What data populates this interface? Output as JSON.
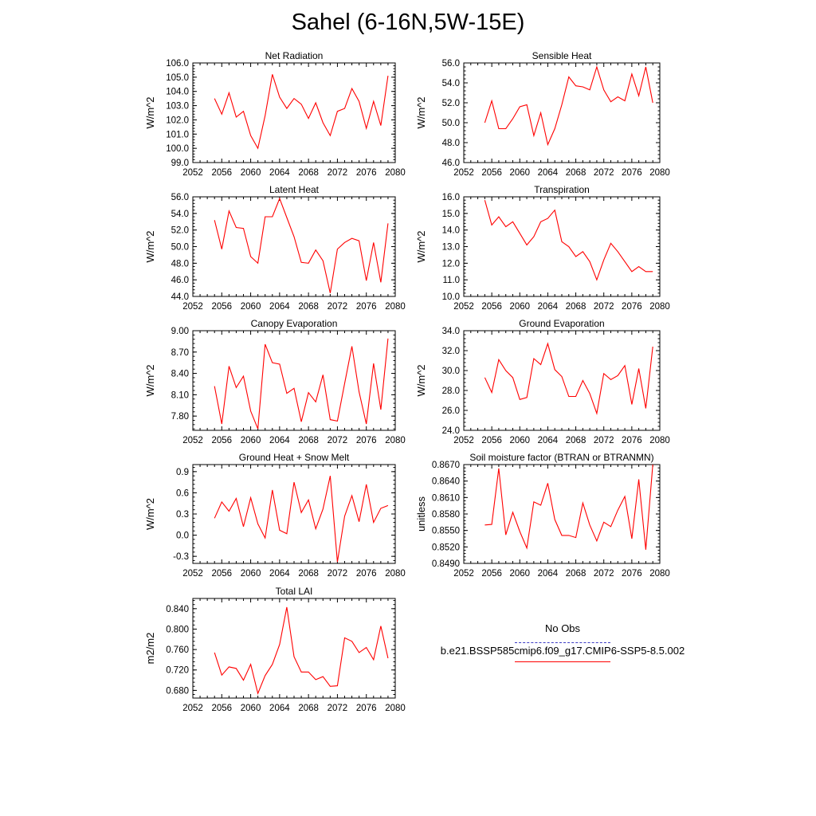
{
  "title": "Sahel (6-16N,5W-15E)",
  "legend": {
    "entries": [
      {
        "label": "No Obs",
        "color": "#3b3bc4",
        "dash": "dashed"
      },
      {
        "label": "b.e21.BSSP585cmip6.f09_g17.CMIP6-SSP5-8.5.002",
        "color": "#ff0000",
        "dash": "solid"
      }
    ]
  },
  "chart_data": [
    {
      "type": "line",
      "title": "Net Radiation",
      "ylabel": "W/m^2",
      "xlim": [
        2052,
        2080
      ],
      "xticks": [
        "2052",
        "2056",
        "2060",
        "2064",
        "2068",
        "2072",
        "2076",
        "2080"
      ],
      "ylim": [
        99.0,
        106.0
      ],
      "yticks": [
        "99.0",
        "100.0",
        "101.0",
        "102.0",
        "103.0",
        "104.0",
        "105.0",
        "106.0"
      ],
      "x": [
        2055,
        2056,
        2057,
        2058,
        2059,
        2060,
        2061,
        2062,
        2063,
        2064,
        2065,
        2066,
        2067,
        2068,
        2069,
        2070,
        2071,
        2072,
        2073,
        2074,
        2075,
        2076,
        2077,
        2078,
        2079
      ],
      "series": [
        {
          "color": "#ff0000",
          "values": [
            103.5,
            102.4,
            103.9,
            102.2,
            102.6,
            100.9,
            100.0,
            102.3,
            105.2,
            103.6,
            102.8,
            103.5,
            103.1,
            102.1,
            103.2,
            101.8,
            100.9,
            102.6,
            102.8,
            104.2,
            103.3,
            101.4,
            103.3,
            101.6,
            105.1
          ]
        }
      ]
    },
    {
      "type": "line",
      "title": "Sensible Heat",
      "ylabel": "W/m^2",
      "xlim": [
        2052,
        2080
      ],
      "xticks": [
        "2052",
        "2056",
        "2060",
        "2064",
        "2068",
        "2072",
        "2076",
        "2080"
      ],
      "ylim": [
        46.0,
        56.0
      ],
      "yticks": [
        "46.0",
        "48.0",
        "50.0",
        "52.0",
        "54.0",
        "56.0"
      ],
      "x": [
        2055,
        2056,
        2057,
        2058,
        2059,
        2060,
        2061,
        2062,
        2063,
        2064,
        2065,
        2066,
        2067,
        2068,
        2069,
        2070,
        2071,
        2072,
        2073,
        2074,
        2075,
        2076,
        2077,
        2078,
        2079
      ],
      "series": [
        {
          "color": "#ff0000",
          "values": [
            50.0,
            52.2,
            49.4,
            49.4,
            50.4,
            51.6,
            51.8,
            48.7,
            51.0,
            47.8,
            49.4,
            51.8,
            54.6,
            53.7,
            53.6,
            53.3,
            55.6,
            53.3,
            52.1,
            52.6,
            52.2,
            54.9,
            52.7,
            55.6,
            52.0
          ]
        }
      ]
    },
    {
      "type": "line",
      "title": "Latent Heat",
      "ylabel": "W/m^2",
      "xlim": [
        2052,
        2080
      ],
      "xticks": [
        "2052",
        "2056",
        "2060",
        "2064",
        "2068",
        "2072",
        "2076",
        "2080"
      ],
      "ylim": [
        44.0,
        56.0
      ],
      "yticks": [
        "44.0",
        "46.0",
        "48.0",
        "50.0",
        "52.0",
        "54.0",
        "56.0"
      ],
      "x": [
        2055,
        2056,
        2057,
        2058,
        2059,
        2060,
        2061,
        2062,
        2063,
        2064,
        2065,
        2066,
        2067,
        2068,
        2069,
        2070,
        2071,
        2072,
        2073,
        2074,
        2075,
        2076,
        2077,
        2078,
        2079
      ],
      "series": [
        {
          "color": "#ff0000",
          "values": [
            53.2,
            49.7,
            54.3,
            52.3,
            52.2,
            48.8,
            48.0,
            53.6,
            53.6,
            55.8,
            53.5,
            51.2,
            48.1,
            48.0,
            49.6,
            48.3,
            44.4,
            49.7,
            50.5,
            51.0,
            50.7,
            45.9,
            50.5,
            45.7,
            52.8
          ]
        }
      ]
    },
    {
      "type": "line",
      "title": "Transpiration",
      "ylabel": "W/m^2",
      "xlim": [
        2052,
        2080
      ],
      "xticks": [
        "2052",
        "2056",
        "2060",
        "2064",
        "2068",
        "2072",
        "2076",
        "2080"
      ],
      "ylim": [
        10.0,
        16.0
      ],
      "yticks": [
        "10.0",
        "11.0",
        "12.0",
        "13.0",
        "14.0",
        "15.0",
        "16.0"
      ],
      "x": [
        2055,
        2056,
        2057,
        2058,
        2059,
        2060,
        2061,
        2062,
        2063,
        2064,
        2065,
        2066,
        2067,
        2068,
        2069,
        2070,
        2071,
        2072,
        2073,
        2074,
        2075,
        2076,
        2077,
        2078,
        2079
      ],
      "series": [
        {
          "color": "#ff0000",
          "values": [
            15.8,
            14.3,
            14.8,
            14.2,
            14.5,
            13.8,
            13.1,
            13.6,
            14.5,
            14.7,
            15.2,
            13.3,
            13.0,
            12.4,
            12.7,
            12.1,
            11.0,
            12.2,
            13.2,
            12.7,
            12.1,
            11.5,
            11.8,
            11.5,
            11.5
          ]
        }
      ]
    },
    {
      "type": "line",
      "title": "Canopy Evaporation",
      "ylabel": "W/m^2",
      "xlim": [
        2052,
        2080
      ],
      "xticks": [
        "2052",
        "2056",
        "2060",
        "2064",
        "2068",
        "2072",
        "2076",
        "2080"
      ],
      "ylim": [
        7.6,
        9.0
      ],
      "yticks": [
        "7.80",
        "8.10",
        "8.40",
        "8.70",
        "9.00"
      ],
      "ytick_values": [
        7.8,
        8.1,
        8.4,
        8.7,
        9.0
      ],
      "x": [
        2055,
        2056,
        2057,
        2058,
        2059,
        2060,
        2061,
        2062,
        2063,
        2064,
        2065,
        2066,
        2067,
        2068,
        2069,
        2070,
        2071,
        2072,
        2073,
        2074,
        2075,
        2076,
        2077,
        2078,
        2079
      ],
      "series": [
        {
          "color": "#ff0000",
          "values": [
            8.22,
            7.69,
            8.5,
            8.2,
            8.36,
            7.87,
            7.62,
            8.81,
            8.55,
            8.53,
            8.12,
            8.19,
            7.72,
            8.13,
            8.0,
            8.38,
            7.75,
            7.73,
            8.26,
            8.78,
            8.14,
            7.69,
            8.54,
            7.89,
            8.89
          ]
        }
      ]
    },
    {
      "type": "line",
      "title": "Ground Evaporation",
      "ylabel": "W/m^2",
      "xlim": [
        2052,
        2080
      ],
      "xticks": [
        "2052",
        "2056",
        "2060",
        "2064",
        "2068",
        "2072",
        "2076",
        "2080"
      ],
      "ylim": [
        24.0,
        34.0
      ],
      "yticks": [
        "24.0",
        "26.0",
        "28.0",
        "30.0",
        "32.0",
        "34.0"
      ],
      "x": [
        2055,
        2056,
        2057,
        2058,
        2059,
        2060,
        2061,
        2062,
        2063,
        2064,
        2065,
        2066,
        2067,
        2068,
        2069,
        2070,
        2071,
        2072,
        2073,
        2074,
        2075,
        2076,
        2077,
        2078,
        2079
      ],
      "series": [
        {
          "color": "#ff0000",
          "values": [
            29.3,
            27.8,
            31.1,
            30.0,
            29.3,
            27.1,
            27.3,
            31.2,
            30.6,
            32.7,
            30.1,
            29.4,
            27.4,
            27.4,
            29.0,
            27.7,
            25.7,
            29.7,
            29.1,
            29.5,
            30.5,
            26.6,
            30.2,
            26.2,
            32.4
          ]
        }
      ]
    },
    {
      "type": "line",
      "title": "Ground Heat + Snow Melt",
      "ylabel": "W/m^2",
      "xlim": [
        2052,
        2080
      ],
      "xticks": [
        "2052",
        "2056",
        "2060",
        "2064",
        "2068",
        "2072",
        "2076",
        "2080"
      ],
      "ylim": [
        -0.4,
        1.0
      ],
      "yticks": [
        "-0.3",
        "0.0",
        "0.3",
        "0.6",
        "0.9"
      ],
      "ytick_values": [
        -0.3,
        0.0,
        0.3,
        0.6,
        0.9
      ],
      "x": [
        2055,
        2056,
        2057,
        2058,
        2059,
        2060,
        2061,
        2062,
        2063,
        2064,
        2065,
        2066,
        2067,
        2068,
        2069,
        2070,
        2071,
        2072,
        2073,
        2074,
        2075,
        2076,
        2077,
        2078,
        2079
      ],
      "series": [
        {
          "color": "#ff0000",
          "values": [
            0.24,
            0.47,
            0.34,
            0.52,
            0.12,
            0.53,
            0.16,
            -0.04,
            0.64,
            0.07,
            0.02,
            0.75,
            0.32,
            0.5,
            0.09,
            0.37,
            0.84,
            -0.38,
            0.27,
            0.56,
            0.19,
            0.72,
            0.18,
            0.38,
            0.42
          ]
        }
      ]
    },
    {
      "type": "line",
      "title": "Soil moisture factor (BTRAN or BTRANMN)",
      "ylabel": "unitless",
      "xlim": [
        2052,
        2080
      ],
      "xticks": [
        "2052",
        "2056",
        "2060",
        "2064",
        "2068",
        "2072",
        "2076",
        "2080"
      ],
      "ylim": [
        0.849,
        0.867
      ],
      "yticks": [
        "0.8490",
        "0.8520",
        "0.8550",
        "0.8580",
        "0.8610",
        "0.8640",
        "0.8670"
      ],
      "ytick_values": [
        0.849,
        0.852,
        0.855,
        0.858,
        0.861,
        0.864,
        0.867
      ],
      "x": [
        2055,
        2056,
        2057,
        2058,
        2059,
        2060,
        2061,
        2062,
        2063,
        2064,
        2065,
        2066,
        2067,
        2068,
        2069,
        2070,
        2071,
        2072,
        2073,
        2074,
        2075,
        2076,
        2077,
        2078,
        2079
      ],
      "series": [
        {
          "color": "#ff0000",
          "values": [
            0.856,
            0.8561,
            0.8663,
            0.8542,
            0.8583,
            0.8548,
            0.8518,
            0.8602,
            0.8596,
            0.8636,
            0.857,
            0.8541,
            0.8541,
            0.8537,
            0.86,
            0.856,
            0.8531,
            0.8565,
            0.8557,
            0.8587,
            0.8612,
            0.8535,
            0.8643,
            0.8515,
            0.867
          ]
        }
      ]
    },
    {
      "type": "line",
      "title": "Total LAI",
      "ylabel": "m2/m2",
      "xlim": [
        2052,
        2080
      ],
      "xticks": [
        "2052",
        "2056",
        "2060",
        "2064",
        "2068",
        "2072",
        "2076",
        "2080"
      ],
      "ylim": [
        0.665,
        0.86
      ],
      "yticks": [
        "0.680",
        "0.720",
        "0.760",
        "0.800",
        "0.840"
      ],
      "ytick_values": [
        0.68,
        0.72,
        0.76,
        0.8,
        0.84
      ],
      "x": [
        2055,
        2056,
        2057,
        2058,
        2059,
        2060,
        2061,
        2062,
        2063,
        2064,
        2065,
        2066,
        2067,
        2068,
        2069,
        2070,
        2071,
        2072,
        2073,
        2074,
        2075,
        2076,
        2077,
        2078,
        2079
      ],
      "series": [
        {
          "color": "#ff0000",
          "values": [
            0.754,
            0.71,
            0.726,
            0.723,
            0.7,
            0.731,
            0.674,
            0.709,
            0.731,
            0.77,
            0.843,
            0.746,
            0.716,
            0.716,
            0.701,
            0.707,
            0.688,
            0.689,
            0.783,
            0.776,
            0.754,
            0.764,
            0.74,
            0.806,
            0.743
          ]
        }
      ]
    }
  ]
}
